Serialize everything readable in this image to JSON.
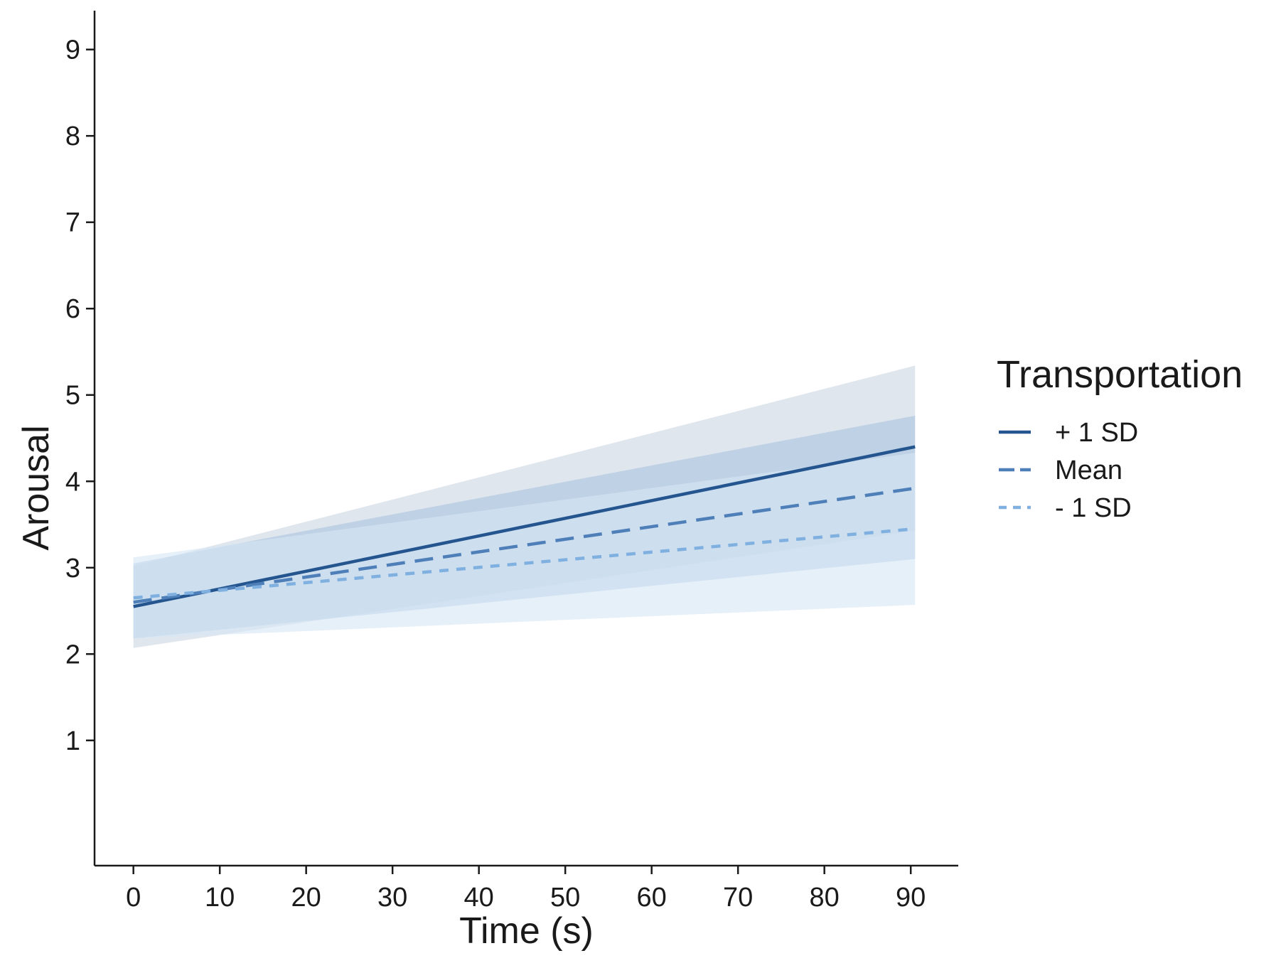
{
  "chart_data": {
    "type": "line",
    "title": "",
    "xlabel": "Time (s)",
    "ylabel": "Arousal",
    "xlim": [
      -4.5,
      95.5
    ],
    "ylim": [
      -0.45,
      9.45
    ],
    "x_ticks": [
      0,
      10,
      20,
      30,
      40,
      50,
      60,
      70,
      80,
      90
    ],
    "y_ticks": [
      1,
      2,
      3,
      4,
      5,
      6,
      7,
      8,
      9
    ],
    "grid": false,
    "legend": {
      "title": "Transportation",
      "position": "right"
    },
    "series": [
      {
        "name": "+ 1 SD",
        "style": "solid",
        "color": "#24558f",
        "band_color": "#cdd6e2",
        "x": [
          0,
          90.5
        ],
        "y": [
          2.55,
          4.4
        ],
        "ci_lower": [
          2.07,
          3.43
        ],
        "ci_upper": [
          3.02,
          5.34
        ]
      },
      {
        "name": "Mean",
        "style": "dashed",
        "color": "#4f7fb8",
        "band_color": "#a9c3e0",
        "x": [
          0,
          90.5
        ],
        "y": [
          2.6,
          3.92
        ],
        "ci_lower": [
          2.18,
          3.1
        ],
        "ci_upper": [
          3.05,
          4.76
        ]
      },
      {
        "name": "- 1 SD",
        "style": "dotted",
        "color": "#7fb0e0",
        "band_color": "#d7e6f6",
        "x": [
          0,
          90.5
        ],
        "y": [
          2.65,
          3.45
        ],
        "ci_lower": [
          2.18,
          2.57
        ],
        "ci_upper": [
          3.12,
          4.33
        ]
      }
    ]
  }
}
